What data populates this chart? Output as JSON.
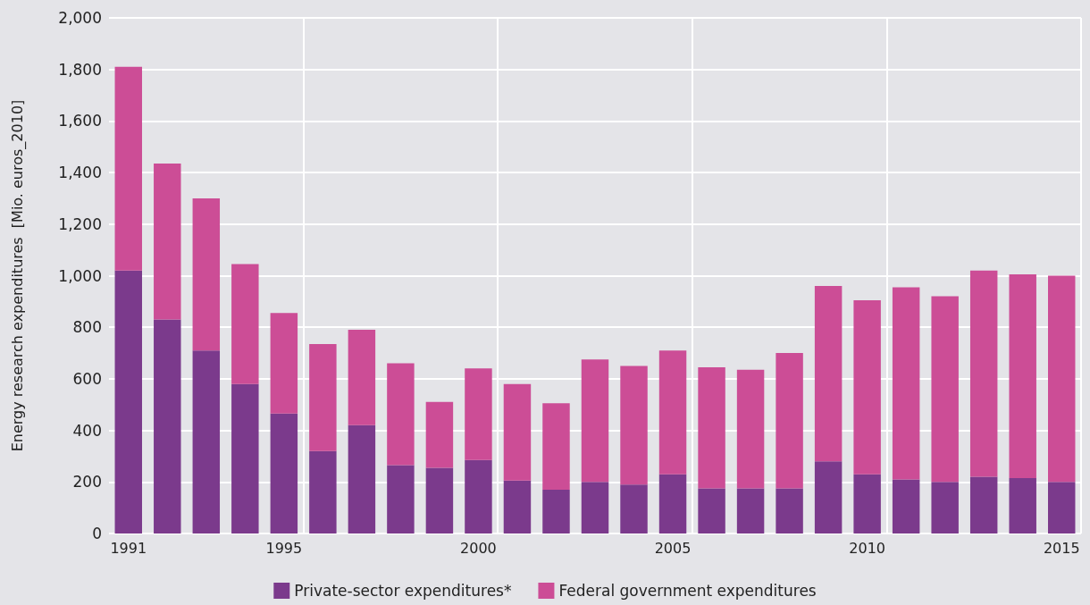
{
  "chart_data": {
    "type": "bar",
    "stacked": true,
    "ylabel": "Energy research expenditures  [Mio. euros_2010]",
    "categories": [
      "1991",
      null,
      null,
      null,
      "1995",
      null,
      null,
      null,
      null,
      "2000",
      null,
      null,
      null,
      null,
      "2005",
      null,
      null,
      null,
      null,
      "2010",
      null,
      null,
      null,
      null,
      "2015"
    ],
    "series": [
      {
        "name": "Private-sector expenditures*",
        "color": "#7b3a8c",
        "values": [
          1020,
          830,
          710,
          580,
          465,
          320,
          420,
          265,
          255,
          285,
          205,
          170,
          200,
          190,
          230,
          175,
          175,
          175,
          280,
          230,
          210,
          200,
          220,
          215,
          200
        ]
      },
      {
        "name": "Federal government expenditures",
        "color": "#cc4d96",
        "values": [
          790,
          605,
          590,
          465,
          390,
          415,
          370,
          395,
          255,
          355,
          375,
          335,
          475,
          460,
          480,
          470,
          460,
          525,
          680,
          675,
          745,
          720,
          800,
          790,
          800
        ]
      }
    ],
    "ylim": [
      0,
      2000
    ],
    "yticks": [
      0,
      200,
      400,
      600,
      800,
      {
        "value": 1000,
        "label": "1,000"
      },
      {
        "value": 1200,
        "label": "1,200"
      },
      {
        "value": 1400,
        "label": "1,400"
      },
      {
        "value": 1600,
        "label": "1,600"
      },
      {
        "value": 1800,
        "label": "1,800"
      },
      {
        "value": 2000,
        "label": "2,000"
      }
    ],
    "grid": true,
    "legend": "bottom"
  }
}
